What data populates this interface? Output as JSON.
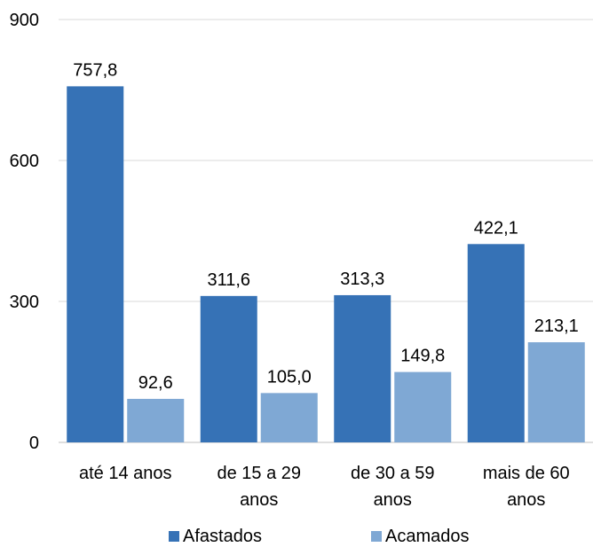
{
  "chart_data": {
    "type": "bar",
    "title": "",
    "xlabel": "",
    "ylabel": "",
    "categories": [
      [
        "até 14 anos"
      ],
      [
        "de 15 a 29",
        "anos"
      ],
      [
        "de 30 a 59",
        "anos"
      ],
      [
        "mais de 60",
        "anos"
      ]
    ],
    "series": [
      {
        "name": "Afastados",
        "color": "#3672b6",
        "values": [
          757.8,
          311.6,
          313.3,
          422.1
        ],
        "labels": [
          "757,8",
          "311,6",
          "313,3",
          "422,1"
        ]
      },
      {
        "name": "Acamados",
        "color": "#7fa8d4",
        "values": [
          92.6,
          105.0,
          149.8,
          213.1
        ],
        "labels": [
          "92,6",
          "105,0",
          "149,8",
          "213,1"
        ]
      }
    ],
    "ylim": [
      0,
      900
    ],
    "yticks": [
      0,
      300,
      600,
      900
    ],
    "ytick_labels": [
      "0",
      "300",
      "600",
      "900"
    ],
    "grid": true,
    "legend_position": "bottom",
    "gridline_color": "#d9d9d9"
  }
}
